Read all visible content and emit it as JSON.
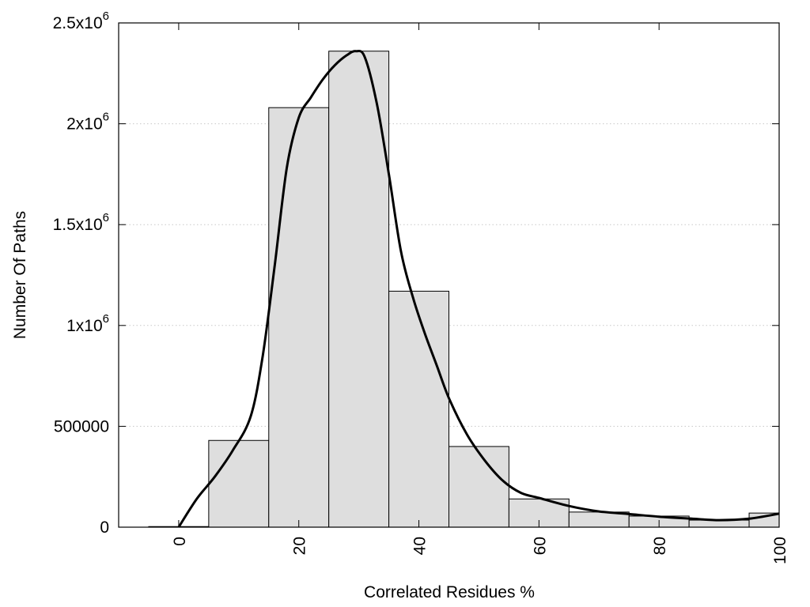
{
  "chart_data": {
    "type": "bar",
    "title": "",
    "xlabel": "Correlated Residues %",
    "ylabel": "Number Of Paths",
    "xlim": [
      -10,
      100
    ],
    "ylim": [
      0,
      2500000
    ],
    "grid": "horizontal-dotted",
    "x_ticks": [
      {
        "value": 0,
        "label": "0"
      },
      {
        "value": 20,
        "label": "20"
      },
      {
        "value": 40,
        "label": "40"
      },
      {
        "value": 60,
        "label": "60"
      },
      {
        "value": 80,
        "label": "80"
      },
      {
        "value": 100,
        "label": "100"
      }
    ],
    "y_ticks": [
      {
        "value": 0,
        "base": "0",
        "exp": ""
      },
      {
        "value": 500000,
        "base": "500000",
        "exp": ""
      },
      {
        "value": 1000000,
        "base": "1x10",
        "exp": "6"
      },
      {
        "value": 1500000,
        "base": "1.5x10",
        "exp": "6"
      },
      {
        "value": 2000000,
        "base": "2x10",
        "exp": "6"
      },
      {
        "value": 2500000,
        "base": "2.5x10",
        "exp": "6"
      }
    ],
    "bin_width": 10,
    "bars": [
      {
        "x": 0,
        "value": 3000
      },
      {
        "x": 10,
        "value": 430000
      },
      {
        "x": 20,
        "value": 2080000
      },
      {
        "x": 30,
        "value": 2360000
      },
      {
        "x": 40,
        "value": 1170000
      },
      {
        "x": 50,
        "value": 400000
      },
      {
        "x": 60,
        "value": 140000
      },
      {
        "x": 70,
        "value": 75000
      },
      {
        "x": 80,
        "value": 55000
      },
      {
        "x": 90,
        "value": 35000
      },
      {
        "x": 100,
        "value": 70000
      }
    ],
    "curve": {
      "x": [
        0,
        3,
        6,
        9,
        12,
        14,
        16,
        18,
        20,
        22,
        24,
        26,
        28,
        29.5,
        31,
        33,
        35,
        37,
        39,
        41,
        43,
        45,
        48,
        51,
        54,
        57,
        60,
        65,
        70,
        75,
        80,
        85,
        90,
        95,
        100
      ],
      "y": [
        0,
        140000,
        250000,
        380000,
        550000,
        850000,
        1300000,
        1780000,
        2030000,
        2130000,
        2220000,
        2290000,
        2340000,
        2360000,
        2330000,
        2100000,
        1750000,
        1370000,
        1140000,
        960000,
        800000,
        640000,
        460000,
        330000,
        230000,
        170000,
        145000,
        105000,
        78000,
        65000,
        52000,
        43000,
        35000,
        42000,
        67000
      ]
    },
    "colors": {
      "bar_fill": "#dedede",
      "bar_stroke": "#000000",
      "curve": "#000000",
      "grid": "#c8c8c8"
    }
  }
}
